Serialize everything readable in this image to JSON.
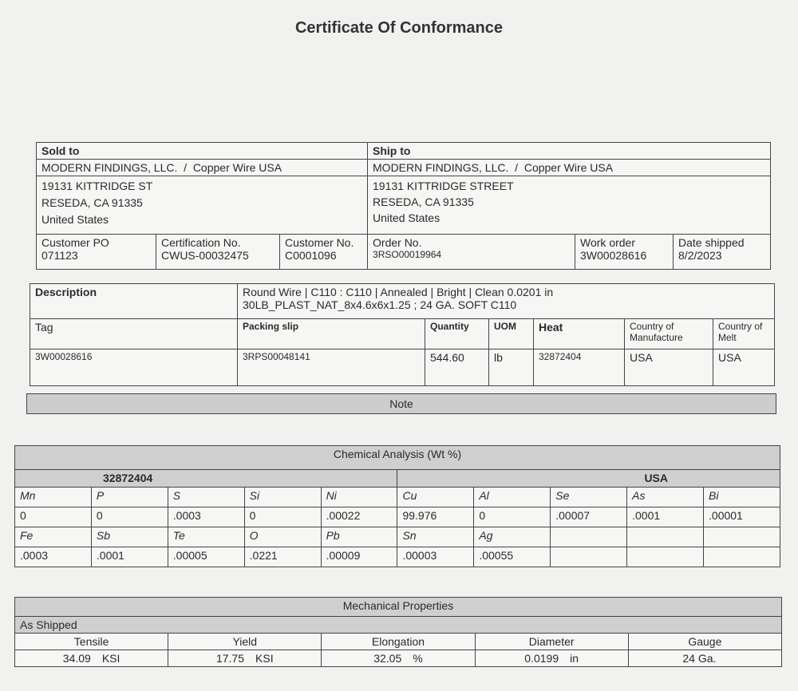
{
  "title": "Certificate Of Conformance",
  "sold_to": {
    "label": "Sold to",
    "company": "MODERN FINDINGS, LLC.",
    "brand": "Copper Wire USA",
    "address": [
      "19131 KITTRIDGE ST",
      "RESEDA, CA 91335",
      "United States"
    ]
  },
  "ship_to": {
    "label": "Ship to",
    "company": "MODERN FINDINGS, LLC.",
    "brand": "Copper Wire USA",
    "address": [
      "19131 KITTRIDGE STREET",
      "RESEDA, CA 91335",
      "United States"
    ]
  },
  "order_fields": [
    {
      "label": "Customer PO",
      "value": "071123"
    },
    {
      "label": "Certification No.",
      "value": "CWUS-00032475"
    },
    {
      "label": "Customer No.",
      "value": "C0001096"
    },
    {
      "label": "Order No.",
      "value": "3RSO00019964"
    },
    {
      "label": "Work order",
      "value": "3W00028616"
    },
    {
      "label": "Date shipped",
      "value": "8/2/2023"
    }
  ],
  "description": {
    "label": "Description",
    "line1": "Round Wire | C110 : C110 | Annealed | Bright | Clean  0.0201 in",
    "line2": "30LB_PLAST_NAT_8x4.6x6x1.25 ; 24 GA. SOFT C110"
  },
  "items": {
    "headers": [
      "Tag",
      "Packing slip",
      "Quantity",
      "UOM",
      "Heat",
      "Country of Manufacture",
      "Country of Melt"
    ],
    "row": [
      "3W00028616",
      "3RPS00048141",
      "544.60",
      "lb",
      "32872404",
      "USA",
      "USA"
    ]
  },
  "note_label": "Note",
  "chemical": {
    "title": "Chemical Analysis (Wt %)",
    "heat": "32872404",
    "country": "USA",
    "rows": [
      [
        "Mn",
        "P",
        "S",
        "Si",
        "Ni",
        "Cu",
        "Al",
        "Se",
        "As",
        "Bi"
      ],
      [
        "0",
        "0",
        ".0003",
        "0",
        ".00022",
        "99.976",
        "0",
        ".00007",
        ".0001",
        ".00001"
      ],
      [
        "Fe",
        "Sb",
        "Te",
        "O",
        "Pb",
        "Sn",
        "Ag",
        "",
        "",
        ""
      ],
      [
        ".0003",
        ".0001",
        ".00005",
        ".0221",
        ".00009",
        ".00003",
        ".00055",
        "",
        "",
        ""
      ]
    ]
  },
  "mechanical": {
    "title": "Mechanical Properties",
    "condition": "As Shipped",
    "headers": [
      "Tensile",
      "Yield",
      "Elongation",
      "Diameter",
      "Gauge"
    ],
    "values": [
      {
        "v": "34.09",
        "u": "KSI"
      },
      {
        "v": "17.75",
        "u": "KSI"
      },
      {
        "v": "32.05",
        "u": "%"
      },
      {
        "v": "0.0199",
        "u": "in"
      },
      {
        "v": "24 Ga.",
        "u": ""
      }
    ]
  }
}
